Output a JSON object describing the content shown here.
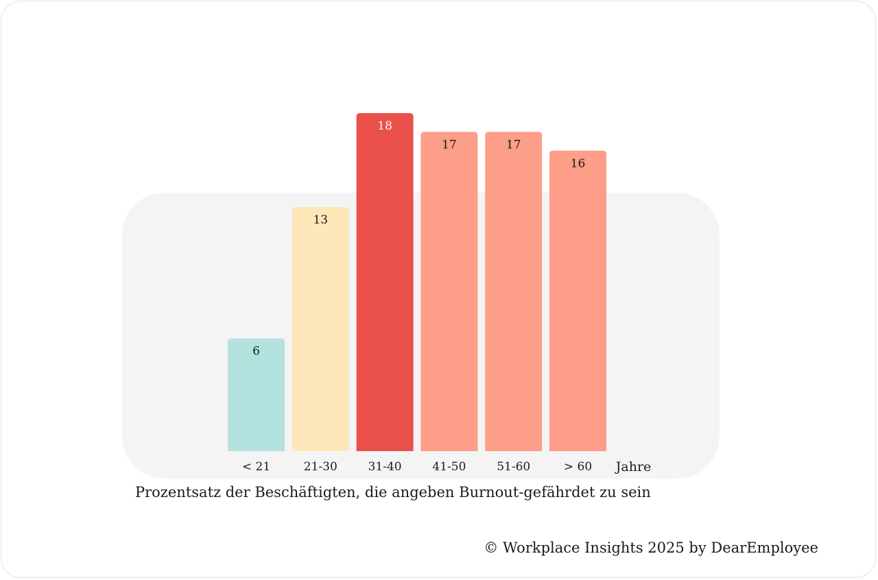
{
  "chart_data": {
    "type": "bar",
    "categories": [
      "< 21",
      "21-30",
      "31-40",
      "41-50",
      "51-60",
      "> 60"
    ],
    "values": [
      6,
      13,
      18,
      17,
      17,
      16
    ],
    "value_labels": [
      "6",
      "13",
      "18",
      "17",
      "17",
      "16"
    ],
    "colors": [
      "#b4e2df",
      "#fde7b9",
      "#e9514a",
      "#fd9e89",
      "#fd9e89",
      "#fd9e89"
    ],
    "label_colors": [
      "#1a1a1a",
      "#1a1a1a",
      "#ffffff",
      "#1a1a1a",
      "#1a1a1a",
      "#1a1a1a"
    ],
    "xlabel": "Jahre",
    "ylim": [
      0,
      18
    ],
    "grid": false,
    "legend": "none"
  },
  "caption": "Prozentsatz der Beschäftigten, die angeben Burnout-gefährdet zu sein",
  "copyright": "© Workplace Insights 2025 by DearEmployee"
}
